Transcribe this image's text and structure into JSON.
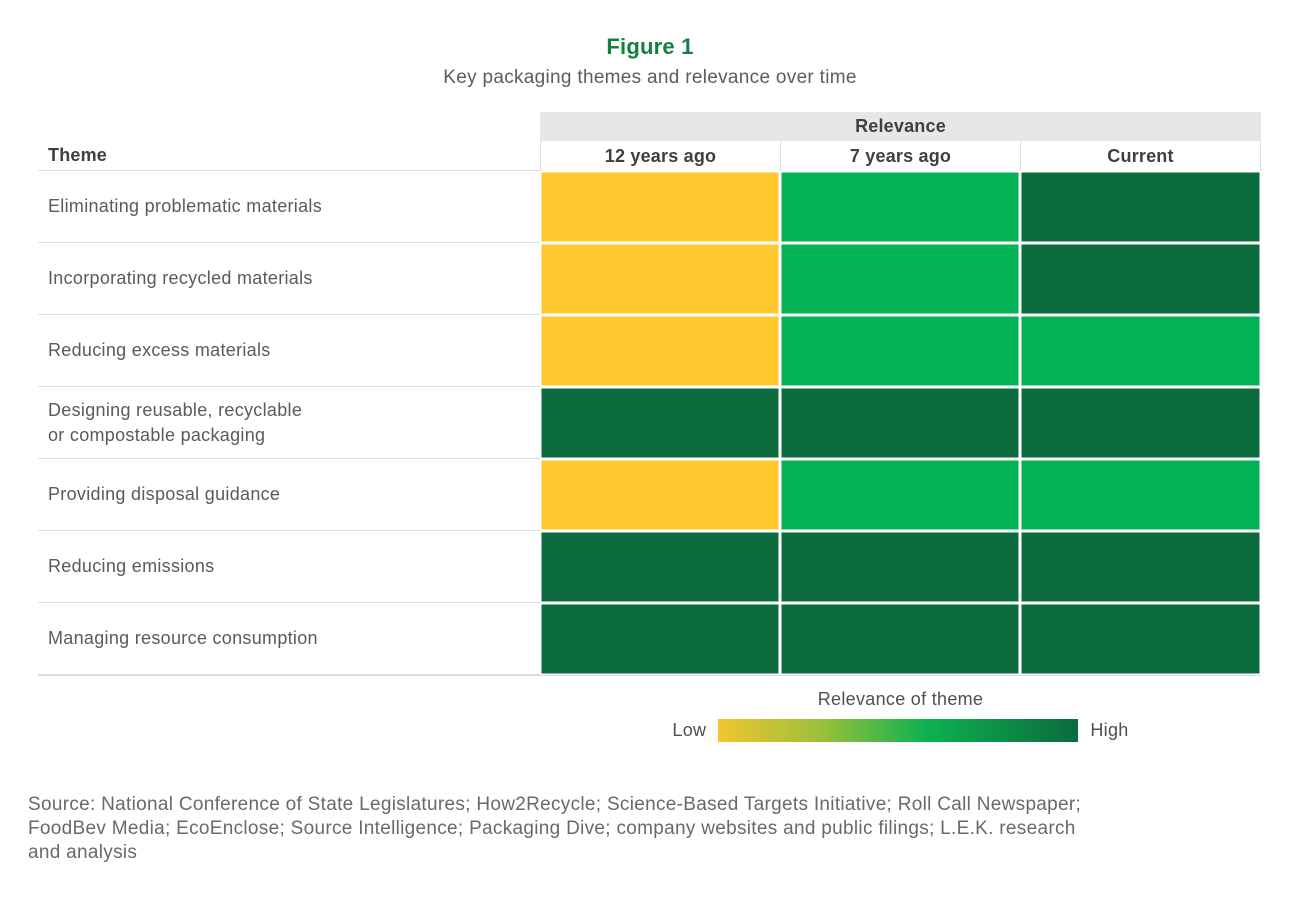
{
  "figure": {
    "label": "Figure 1",
    "title": "Key packaging themes and relevance over time"
  },
  "chart_data": {
    "type": "heatmap",
    "figure_label": "Figure 1",
    "title": "Key packaging themes and relevance over time",
    "theme_header": "Theme",
    "relevance_header": "Relevance",
    "columns": [
      "12 years ago",
      "7 years ago",
      "Current"
    ],
    "rows": [
      {
        "theme": "Eliminating problematic materials",
        "values": [
          "low",
          "medium",
          "high"
        ]
      },
      {
        "theme": "Incorporating recycled materials",
        "values": [
          "low",
          "medium",
          "high"
        ]
      },
      {
        "theme": "Reducing excess materials",
        "values": [
          "low",
          "medium",
          "medium"
        ]
      },
      {
        "theme": "Designing reusable, recyclable\nor compostable packaging",
        "values": [
          "high",
          "high",
          "high"
        ]
      },
      {
        "theme": "Providing disposal guidance",
        "values": [
          "low",
          "medium",
          "medium"
        ]
      },
      {
        "theme": "Reducing emissions",
        "values": [
          "high",
          "high",
          "high"
        ]
      },
      {
        "theme": "Managing resource consumption",
        "values": [
          "high",
          "high",
          "high"
        ]
      }
    ],
    "value_scale_order": [
      "low",
      "medium",
      "high"
    ],
    "legend_position": "bottom"
  },
  "legend": {
    "title": "Relevance of theme",
    "low_label": "Low",
    "high_label": "High"
  },
  "source": {
    "text": "Source: National Conference of State Legislatures; How2Recycle; Science-Based Targets Initiative; Roll Call Newspaper;\nFoodBev Media; EcoEnclose; Source Intelligence; Packaging Dive; company websites and public filings; L.E.K. research\nand analysis"
  },
  "colors": {
    "scale": {
      "low": "#FFC82E",
      "medium": "#03B254",
      "high": "#0B6B3C"
    },
    "figure_label_green": "#14803F",
    "header_band_gray": "#E6E8E8",
    "gradient_stops": [
      "#F2C630 0%",
      "#96BF3B 30%",
      "#0CB151 58%",
      "#0B6B3C 100%"
    ]
  }
}
